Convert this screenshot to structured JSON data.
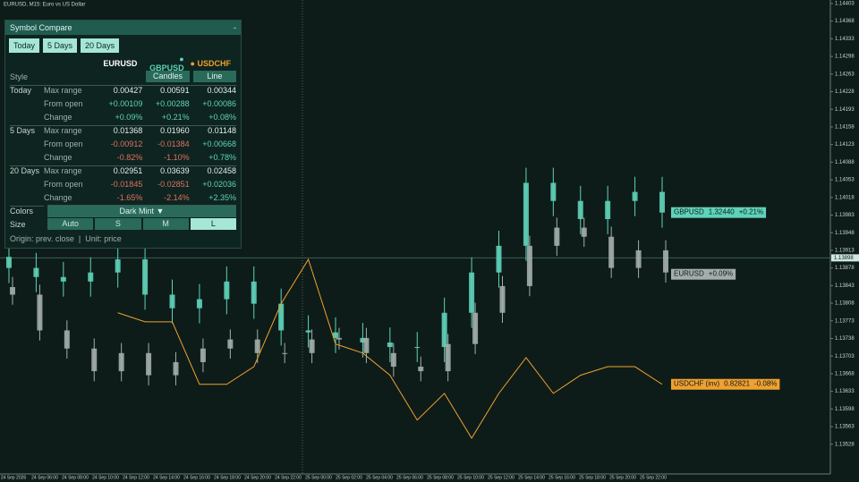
{
  "window_title": "EURUSD, M15:  Euro vs US Dollar",
  "panel": {
    "title": "Symbol Compare",
    "collapse": "-",
    "tabs": [
      "Today",
      "5 Days",
      "20 Days"
    ],
    "symbols": [
      "EURUSD",
      "GBPUSD",
      "USDCHF"
    ],
    "style_label": "Style",
    "styles": [
      "Candles",
      "Line"
    ],
    "sections": [
      {
        "name": "Today",
        "rows": [
          {
            "label": "Max range",
            "values": [
              "0.00427",
              "0.00591",
              "0.00344"
            ]
          },
          {
            "label": "From open",
            "values": [
              "+0.00109",
              "+0.00288",
              "+0.00086"
            ]
          },
          {
            "label": "Change",
            "values": [
              "+0.09%",
              "+0.21%",
              "+0.08%"
            ]
          }
        ]
      },
      {
        "name": "5 Days",
        "rows": [
          {
            "label": "Max range",
            "values": [
              "0.01368",
              "0.01960",
              "0.01148"
            ]
          },
          {
            "label": "From open",
            "values": [
              "-0.00912",
              "-0.01384",
              "+0.00668"
            ]
          },
          {
            "label": "Change",
            "values": [
              "-0.82%",
              "-1.10%",
              "+0.78%"
            ]
          }
        ]
      },
      {
        "name": "20 Days",
        "rows": [
          {
            "label": "Max range",
            "values": [
              "0.02951",
              "0.03639",
              "0.02458"
            ]
          },
          {
            "label": "From open",
            "values": [
              "-0.01845",
              "-0.02851",
              "+0.02036"
            ]
          },
          {
            "label": "Change",
            "values": [
              "-1.65%",
              "-2.14%",
              "+2.35%"
            ]
          }
        ]
      }
    ],
    "colors_label": "Colors",
    "color_scheme": "Dark Mint ▼",
    "size_label": "Size",
    "sizes": [
      "Auto",
      "S",
      "M",
      "L"
    ],
    "footer": "Origin: prev. close  |  Unit: price"
  },
  "chart_data": {
    "type": "candlestick",
    "ylim": [
      1.13469,
      1.1441
    ],
    "yticks": [
      1.14403,
      1.14368,
      1.14333,
      1.14298,
      1.14263,
      1.14228,
      1.14193,
      1.14158,
      1.14123,
      1.14088,
      1.14053,
      1.14018,
      1.13983,
      1.13948,
      1.13913,
      1.13878,
      1.13843,
      1.13808,
      1.13773,
      1.13738,
      1.13703,
      1.13668,
      1.13633,
      1.13598,
      1.13563,
      1.13528
    ],
    "current_price": 1.13898,
    "time_labels": [
      "24 Sep 2026",
      "24 Sep 06:00",
      "24 Sep 08:00",
      "24 Sep 10:00",
      "24 Sep 12:00",
      "24 Sep 14:00",
      "24 Sep 16:00",
      "24 Sep 18:00",
      "24 Sep 20:00",
      "24 Sep 22:00",
      "25 Sep 00:00",
      "25 Sep 02:00",
      "25 Sep 04:00",
      "25 Sep 06:00",
      "25 Sep 08:00",
      "25 Sep 10:00",
      "25 Sep 12:00",
      "25 Sep 14:00",
      "25 Sep 16:00",
      "25 Sep 18:00",
      "25 Sep 20:00",
      "25 Sep 22:00"
    ],
    "series": [
      {
        "name": "GBPUSD",
        "color": "#5fd3b9",
        "style": "candles",
        "last_label": "1.32440",
        "change_label": "+0.21%",
        "open": [
          1.139,
          1.13878,
          1.1386,
          1.13851,
          1.13869,
          1.13895,
          1.13825,
          1.13798,
          1.13816,
          1.13851,
          1.13807,
          1.13754,
          1.1375,
          1.13739,
          1.1373,
          1.13721,
          1.13721,
          1.13789,
          1.13869,
          1.13922,
          1.14047,
          1.14011,
          1.13975,
          1.14011,
          1.14029
        ],
        "high": [
          1.1393,
          1.13908,
          1.1389,
          1.13899,
          1.13925,
          1.13925,
          1.13855,
          1.13846,
          1.13881,
          1.13881,
          1.13837,
          1.13784,
          1.1378,
          1.13769,
          1.1376,
          1.13751,
          1.13819,
          1.13899,
          1.13952,
          1.14077,
          1.14077,
          1.14041,
          1.14041,
          1.14059,
          1.14059
        ],
        "low": [
          1.13848,
          1.1383,
          1.13821,
          1.13821,
          1.13839,
          1.13795,
          1.13768,
          1.13768,
          1.13786,
          1.13777,
          1.13724,
          1.1372,
          1.13709,
          1.137,
          1.13691,
          1.13691,
          1.13691,
          1.13759,
          1.13839,
          1.13892,
          1.13981,
          1.13945,
          1.13945,
          1.13981,
          1.13958
        ],
        "close": [
          1.13878,
          1.1386,
          1.13851,
          1.13869,
          1.13895,
          1.13825,
          1.13798,
          1.13816,
          1.13851,
          1.13807,
          1.13754,
          1.1375,
          1.13739,
          1.1373,
          1.13721,
          1.13721,
          1.13789,
          1.13869,
          1.13922,
          1.14047,
          1.14011,
          1.13975,
          1.14011,
          1.14029,
          1.13988
        ]
      },
      {
        "name": "EURUSD",
        "color": "#a3aeab",
        "style": "candles",
        "change_label": "+0.09%",
        "open": [
          1.1384,
          1.13825,
          1.13754,
          1.13718,
          1.13673,
          1.13709,
          1.13665,
          1.13691,
          1.13718,
          1.13736,
          1.13709,
          1.13709,
          1.13736,
          1.13739,
          1.13709,
          1.13682,
          1.13673,
          1.13727,
          1.13789,
          1.13842,
          1.13922,
          1.13958,
          1.1394,
          1.13878,
          1.13913
        ],
        "high": [
          1.1386,
          1.13845,
          1.13774,
          1.13738,
          1.13729,
          1.13729,
          1.13711,
          1.13738,
          1.13756,
          1.13756,
          1.13729,
          1.13756,
          1.13759,
          1.13759,
          1.13729,
          1.13702,
          1.13747,
          1.13809,
          1.13862,
          1.13942,
          1.13978,
          1.13978,
          1.1396,
          1.13933,
          1.13933
        ],
        "low": [
          1.13805,
          1.13734,
          1.13698,
          1.13653,
          1.13653,
          1.13645,
          1.13645,
          1.13671,
          1.13698,
          1.13689,
          1.13689,
          1.13689,
          1.13716,
          1.13689,
          1.13662,
          1.13653,
          1.13653,
          1.13707,
          1.13769,
          1.13822,
          1.13902,
          1.1392,
          1.13858,
          1.13858,
          1.13849
        ],
        "close": [
          1.13825,
          1.13754,
          1.13718,
          1.13673,
          1.13709,
          1.13665,
          1.13691,
          1.13718,
          1.13736,
          1.13709,
          1.13709,
          1.13736,
          1.13739,
          1.13709,
          1.13682,
          1.13673,
          1.13727,
          1.13789,
          1.13842,
          1.13922,
          1.13958,
          1.1394,
          1.13878,
          1.13913,
          1.13869
        ]
      },
      {
        "name": "USDCHF (inv)",
        "color": "#f0a030",
        "style": "line",
        "last_label": "0.82821",
        "change_label": "-0.08%",
        "values": [
          null,
          null,
          null,
          null,
          1.13789,
          1.13771,
          1.13771,
          1.13647,
          1.13647,
          1.13682,
          1.13807,
          1.13895,
          1.13727,
          1.13709,
          1.13665,
          1.13576,
          1.13629,
          1.1354,
          1.13629,
          1.137,
          1.13629,
          1.13665,
          1.13682,
          1.13682,
          1.13647
        ]
      }
    ]
  }
}
